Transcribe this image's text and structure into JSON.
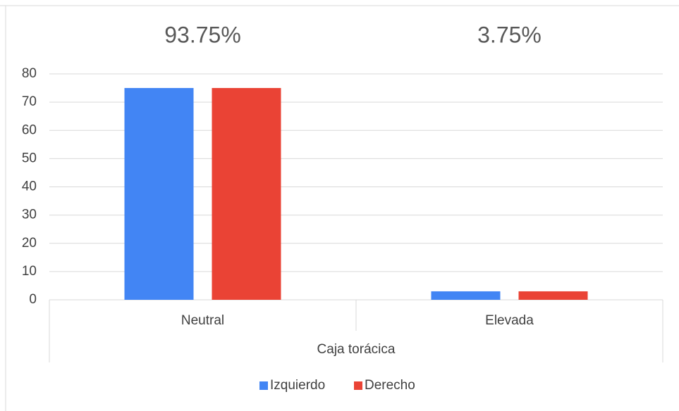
{
  "chart_data": {
    "type": "bar",
    "annotations": [
      "93.75%",
      "3.75%"
    ],
    "categories": [
      "Neutral",
      "Elevada"
    ],
    "series": [
      {
        "name": "Izquierdo",
        "color": "#4285f4",
        "values": [
          75,
          3
        ]
      },
      {
        "name": "Derecho",
        "color": "#ea4335",
        "values": [
          75,
          3
        ]
      }
    ],
    "x_label": "Caja torácica",
    "ylim": [
      0,
      80
    ],
    "yticks": [
      0,
      10,
      20,
      30,
      40,
      50,
      60,
      70,
      80
    ],
    "grid": true,
    "legend": "bottom"
  }
}
